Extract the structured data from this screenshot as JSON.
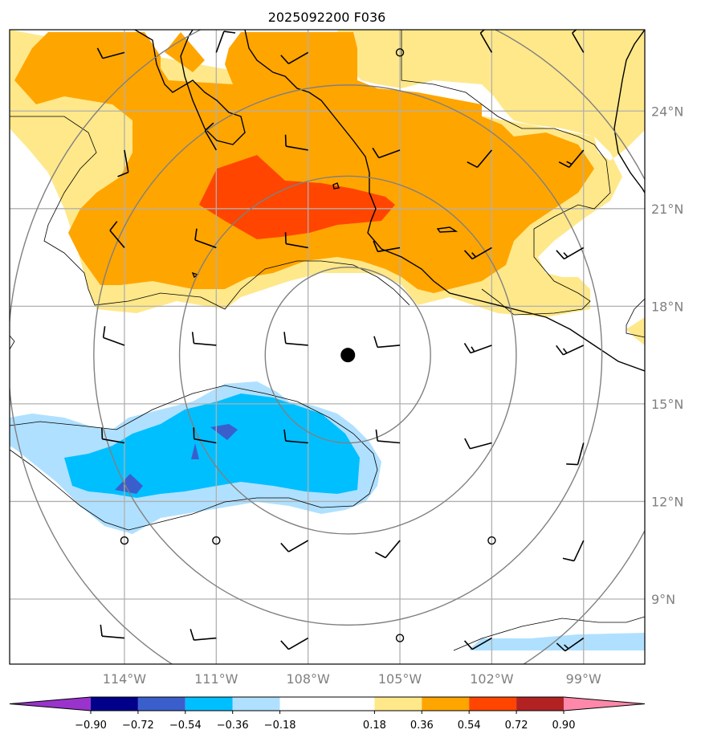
{
  "title": "2025092200 F036",
  "map": {
    "lon_range": [
      -117.75,
      -97.0
    ],
    "lat_range": [
      7.0,
      26.5
    ],
    "lat_ticks": [
      {
        "value": 24,
        "label": "24°N"
      },
      {
        "value": 21,
        "label": "21°N"
      },
      {
        "value": 18,
        "label": "18°N"
      },
      {
        "value": 15,
        "label": "15°N"
      },
      {
        "value": 12,
        "label": "12°N"
      },
      {
        "value": 9,
        "label": "9°N"
      }
    ],
    "lon_ticks": [
      {
        "value": -114,
        "label": "114°W"
      },
      {
        "value": -111,
        "label": "111°W"
      },
      {
        "value": -108,
        "label": "108°W"
      },
      {
        "value": -105,
        "label": "105°W"
      },
      {
        "value": -102,
        "label": "102°W"
      },
      {
        "value": -99,
        "label": "99°W"
      }
    ],
    "storm_center": {
      "lon": -106.7,
      "lat": 16.5
    },
    "range_rings_deg": [
      2.7,
      5.5,
      8.3,
      11.1
    ],
    "grid": true
  },
  "colorbar": {
    "boundaries": [
      -0.9,
      -0.72,
      -0.54,
      -0.36,
      -0.18,
      0.18,
      0.36,
      0.54,
      0.72,
      0.9
    ],
    "tick_labels": [
      "−0.90",
      "−0.72",
      "−0.54",
      "−0.36",
      "−0.18",
      "0.18",
      "0.36",
      "0.54",
      "0.72",
      "0.90"
    ],
    "colors": [
      "#9933cc",
      "#00008b",
      "#3a5fcd",
      "#00bfff",
      "#b0e0ff",
      "#ffffff",
      "#ffe88a",
      "#ffa500",
      "#ff4500",
      "#b22222",
      "#ff88aa"
    ],
    "extend": "both"
  },
  "field_colors": {
    "pos1": "#ffe88a",
    "pos2": "#ffa500",
    "pos3": "#ff4500",
    "neg1": "#b0e0ff",
    "neg2": "#00bfff",
    "neg3": "#3a5fcd"
  },
  "wind_barbs": [
    {
      "lon": -114,
      "lat": 25.8,
      "dir": 255,
      "spd": 10
    },
    {
      "lon": -111,
      "lat": 25.8,
      "dir": 20,
      "spd": 10
    },
    {
      "lon": -108,
      "lat": 25.8,
      "dir": 240,
      "spd": 10
    },
    {
      "lon": -105,
      "lat": 25.8,
      "dir": 0,
      "spd": 0
    },
    {
      "lon": -102,
      "lat": 25.8,
      "dir": 330,
      "spd": 10
    },
    {
      "lon": -99,
      "lat": 25.8,
      "dir": 330,
      "spd": 10
    },
    {
      "lon": -114,
      "lat": 22.8,
      "dir": 170,
      "spd": 10
    },
    {
      "lon": -111,
      "lat": 22.8,
      "dir": 330,
      "spd": 10
    },
    {
      "lon": -108,
      "lat": 22.8,
      "dir": 280,
      "spd": 10
    },
    {
      "lon": -105,
      "lat": 22.8,
      "dir": 250,
      "spd": 10
    },
    {
      "lon": -102,
      "lat": 22.8,
      "dir": 220,
      "spd": 10
    },
    {
      "lon": -99,
      "lat": 22.8,
      "dir": 220,
      "spd": 15
    },
    {
      "lon": -114,
      "lat": 19.8,
      "dir": 320,
      "spd": 10
    },
    {
      "lon": -111,
      "lat": 19.8,
      "dir": 290,
      "spd": 10
    },
    {
      "lon": -108,
      "lat": 19.8,
      "dir": 280,
      "spd": 10
    },
    {
      "lon": -105,
      "lat": 19.8,
      "dir": 260,
      "spd": 10
    },
    {
      "lon": -102,
      "lat": 19.8,
      "dir": 240,
      "spd": 15
    },
    {
      "lon": -99,
      "lat": 19.8,
      "dir": 240,
      "spd": 15
    },
    {
      "lon": -114,
      "lat": 16.8,
      "dir": 290,
      "spd": 10
    },
    {
      "lon": -111,
      "lat": 16.8,
      "dir": 275,
      "spd": 10
    },
    {
      "lon": -108,
      "lat": 16.8,
      "dir": 275,
      "spd": 10
    },
    {
      "lon": -105,
      "lat": 16.8,
      "dir": 265,
      "spd": 10
    },
    {
      "lon": -102,
      "lat": 16.8,
      "dir": 250,
      "spd": 15
    },
    {
      "lon": -99,
      "lat": 16.8,
      "dir": 245,
      "spd": 15
    },
    {
      "lon": -114,
      "lat": 13.8,
      "dir": 280,
      "spd": 10
    },
    {
      "lon": -111,
      "lat": 13.8,
      "dir": 280,
      "spd": 10
    },
    {
      "lon": -108,
      "lat": 13.8,
      "dir": 275,
      "spd": 10
    },
    {
      "lon": -105,
      "lat": 13.8,
      "dir": 275,
      "spd": 10
    },
    {
      "lon": -102,
      "lat": 13.8,
      "dir": 255,
      "spd": 10
    },
    {
      "lon": -99,
      "lat": 13.8,
      "dir": 195,
      "spd": 10
    },
    {
      "lon": -114,
      "lat": 10.8,
      "dir": 0,
      "spd": 0
    },
    {
      "lon": -111,
      "lat": 10.8,
      "dir": 0,
      "spd": 0
    },
    {
      "lon": -108,
      "lat": 10.8,
      "dir": 240,
      "spd": 10
    },
    {
      "lon": -105,
      "lat": 10.8,
      "dir": 220,
      "spd": 10
    },
    {
      "lon": -102,
      "lat": 10.8,
      "dir": 0,
      "spd": 0
    },
    {
      "lon": -99,
      "lat": 10.8,
      "dir": 205,
      "spd": 10
    },
    {
      "lon": -114,
      "lat": 7.8,
      "dir": 275,
      "spd": 10
    },
    {
      "lon": -111,
      "lat": 7.8,
      "dir": 265,
      "spd": 10
    },
    {
      "lon": -108,
      "lat": 7.8,
      "dir": 240,
      "spd": 10
    },
    {
      "lon": -105,
      "lat": 7.8,
      "dir": 0,
      "spd": 0
    },
    {
      "lon": -102,
      "lat": 7.8,
      "dir": 240,
      "spd": 10
    },
    {
      "lon": -99,
      "lat": 7.8,
      "dir": 235,
      "spd": 15
    }
  ]
}
